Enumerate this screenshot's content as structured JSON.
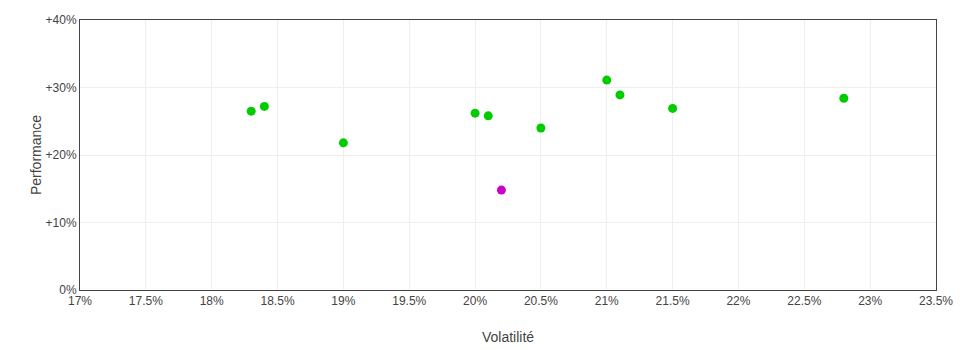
{
  "chart_data": {
    "type": "scatter",
    "xlabel": "Volatilité",
    "ylabel": "Performance",
    "series": [
      {
        "color": "#00cc00",
        "marker": "circle",
        "x": [
          0.183,
          0.184,
          0.19,
          0.2,
          0.201,
          0.205,
          0.21,
          0.211,
          0.215,
          0.228
        ],
        "values": [
          0.265,
          0.272,
          0.218,
          0.262,
          0.258,
          0.24,
          0.311,
          0.289,
          0.269,
          0.284
        ]
      },
      {
        "color": "#cc00cc",
        "marker": "circle",
        "x": [
          0.202
        ],
        "values": [
          0.148
        ]
      }
    ],
    "xlim": [
      0.17,
      0.235
    ],
    "xticks": [
      {
        "value": 0.17,
        "label": "17%"
      },
      {
        "value": 0.175,
        "label": "17.5%"
      },
      {
        "value": 0.18,
        "label": "18%"
      },
      {
        "value": 0.185,
        "label": "18.5%"
      },
      {
        "value": 0.19,
        "label": "19%"
      },
      {
        "value": 0.195,
        "label": "19.5%"
      },
      {
        "value": 0.2,
        "label": "20%"
      },
      {
        "value": 0.205,
        "label": "20.5%"
      },
      {
        "value": 0.21,
        "label": "21%"
      },
      {
        "value": 0.215,
        "label": "21.5%"
      },
      {
        "value": 0.22,
        "label": "22%"
      },
      {
        "value": 0.225,
        "label": "22.5%"
      },
      {
        "value": 0.23,
        "label": "23%"
      },
      {
        "value": 0.235,
        "label": "23.5%"
      }
    ],
    "ylim": [
      0.0,
      0.4
    ],
    "yticks": [
      {
        "value": 0.0,
        "label": "0%"
      },
      {
        "value": 0.1,
        "label": "+10%"
      },
      {
        "value": 0.2,
        "label": "+20%"
      },
      {
        "value": 0.3,
        "label": "+30%"
      },
      {
        "value": 0.4,
        "label": "+40%"
      }
    ],
    "grid": true
  }
}
